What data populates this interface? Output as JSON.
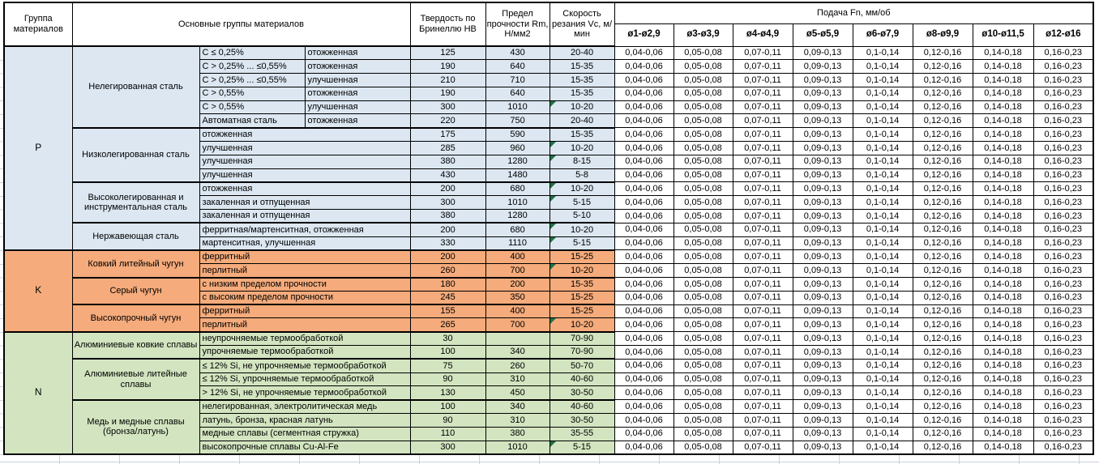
{
  "table": {
    "headers": {
      "group": "Группа материалов",
      "main_groups": "Основные группы материалов",
      "hardness": "Твердость по Бринеллю HB",
      "strength": "Предел прочности Rm, Н/мм2",
      "speed": "Скорость резания Vc, м/мин",
      "feed": "Подача Fn, мм/об",
      "feed_columns": [
        "ø1-ø2,9",
        "ø3-ø3,9",
        "ø4-ø4,9",
        "ø5-ø5,9",
        "ø6-ø7,9",
        "ø8-ø9,9",
        "ø10-ø11,5",
        "ø12-ø16"
      ]
    },
    "feed_values": [
      "0,04-0,06",
      "0,05-0,08",
      "0,07-0,11",
      "0,09-0,13",
      "0,1-0,14",
      "0,12-0,16",
      "0,14-0,18",
      "0,16-0,23"
    ],
    "marker_color": "#1f7244",
    "groups": [
      {
        "letter": "P",
        "color": "#dce7f2",
        "subgroups": [
          {
            "name": "Нелегированная сталь",
            "rows": [
              {
                "c1": "C ≤ 0,25%",
                "c2": "отожженная",
                "hb": "125",
                "rm": "430",
                "vc": "20-40",
                "marker": false
              },
              {
                "c1": "C > 0,25% ... ≤0,55%",
                "c2": "отожженная",
                "hb": "190",
                "rm": "640",
                "vc": "15-35",
                "marker": false
              },
              {
                "c1": "C > 0,25% ... ≤0,55%",
                "c2": "улучшенная",
                "hb": "210",
                "rm": "710",
                "vc": "15-35",
                "marker": false
              },
              {
                "c1": "C > 0,55%",
                "c2": "отожженная",
                "hb": "190",
                "rm": "640",
                "vc": "15-35",
                "marker": false
              },
              {
                "c1": "C > 0,55%",
                "c2": "улучшенная",
                "hb": "300",
                "rm": "1010",
                "vc": "10-20",
                "marker": true
              },
              {
                "c1": "Автоматная сталь",
                "c2": "отожженная",
                "hb": "220",
                "rm": "750",
                "vc": "20-40",
                "marker": false
              }
            ]
          },
          {
            "name": "Низколегированная сталь",
            "rows": [
              {
                "cond": "отожженная",
                "hb": "175",
                "rm": "590",
                "vc": "15-35",
                "marker": false
              },
              {
                "cond": "улучшенная",
                "hb": "285",
                "rm": "960",
                "vc": "10-20",
                "marker": true
              },
              {
                "cond": "улучшенная",
                "hb": "380",
                "rm": "1280",
                "vc": "8-15",
                "marker": true
              },
              {
                "cond": "улучшенная",
                "hb": "430",
                "rm": "1480",
                "vc": "5-8",
                "marker": false
              }
            ]
          },
          {
            "name": "Высоколегированная и инструментальная сталь",
            "rows": [
              {
                "cond": "отожженная",
                "hb": "200",
                "rm": "680",
                "vc": "10-20",
                "marker": true
              },
              {
                "cond": "закаленная и отпущенная",
                "hb": "300",
                "rm": "1010",
                "vc": "5-15",
                "marker": true
              },
              {
                "cond": "закаленная и отпущенная",
                "hb": "380",
                "rm": "1280",
                "vc": "5-10",
                "marker": false
              }
            ]
          },
          {
            "name": "Нержавеющая сталь",
            "rows": [
              {
                "cond": "ферритная/мартенситная, отожженная",
                "hb": "200",
                "rm": "680",
                "vc": "10-20",
                "marker": true
              },
              {
                "cond": "мартенситная, улучшенная",
                "hb": "330",
                "rm": "1110",
                "vc": "5-15",
                "marker": true
              }
            ]
          }
        ]
      },
      {
        "letter": "K",
        "color": "#f5ab7b",
        "subgroups": [
          {
            "name": "Ковкий литейный чугун",
            "rows": [
              {
                "cond": "ферритный",
                "hb": "200",
                "rm": "400",
                "vc": "15-25",
                "marker": false
              },
              {
                "cond": "перлитный",
                "hb": "260",
                "rm": "700",
                "vc": "10-20",
                "marker": true
              }
            ]
          },
          {
            "name": "Серый чугун",
            "rows": [
              {
                "cond": "с низким пределом прочности",
                "hb": "180",
                "rm": "200",
                "vc": "15-35",
                "marker": false
              },
              {
                "cond": "с высоким пределом прочности",
                "hb": "245",
                "rm": "350",
                "vc": "15-25",
                "marker": false
              }
            ]
          },
          {
            "name": "Высокопрочный чугун",
            "rows": [
              {
                "cond": "ферритный",
                "hb": "155",
                "rm": "400",
                "vc": "15-25",
                "marker": false
              },
              {
                "cond": "перлитный",
                "hb": "265",
                "rm": "700",
                "vc": "10-20",
                "marker": true
              }
            ]
          }
        ]
      },
      {
        "letter": "N",
        "color": "#d3e5c0",
        "subgroups": [
          {
            "name": "Алюминиевые ковкие сплавы",
            "rows": [
              {
                "cond": "неупрочняемые термообработкой",
                "hb": "30",
                "rm": "",
                "vc": "70-90",
                "marker": false
              },
              {
                "cond": "упрочняемые термообработкой",
                "hb": "100",
                "rm": "340",
                "vc": "70-90",
                "marker": false
              }
            ]
          },
          {
            "name": "Алюминиевые литейные сплавы",
            "rows": [
              {
                "cond": "≤ 12% Si, не упрочняемые термообработкой",
                "hb": "75",
                "rm": "260",
                "vc": "50-70",
                "marker": false
              },
              {
                "cond": "≤ 12% Si, упрочняемые термообработкой",
                "hb": "90",
                "rm": "310",
                "vc": "40-60",
                "marker": false
              },
              {
                "cond": "> 12% Si, не упрочняемые термообработкой",
                "hb": "130",
                "rm": "450",
                "vc": "30-50",
                "marker": false
              }
            ]
          },
          {
            "name": "Медь и медные сплавы (бронза/латунь)",
            "rows": [
              {
                "cond": "нелегированная, электролитическая медь",
                "hb": "100",
                "rm": "340",
                "vc": "40-60",
                "marker": false
              },
              {
                "cond": "латунь, бронза, красная латунь",
                "hb": "90",
                "rm": "310",
                "vc": "30-50",
                "marker": false
              },
              {
                "cond": "медные сплавы (сегментная стружка)",
                "hb": "110",
                "rm": "380",
                "vc": "35-55",
                "marker": false
              },
              {
                "cond": "высокопрочные сплавы Cu-Al-Fe",
                "hb": "300",
                "rm": "1010",
                "vc": "5-15",
                "marker": true
              }
            ]
          }
        ]
      }
    ]
  }
}
